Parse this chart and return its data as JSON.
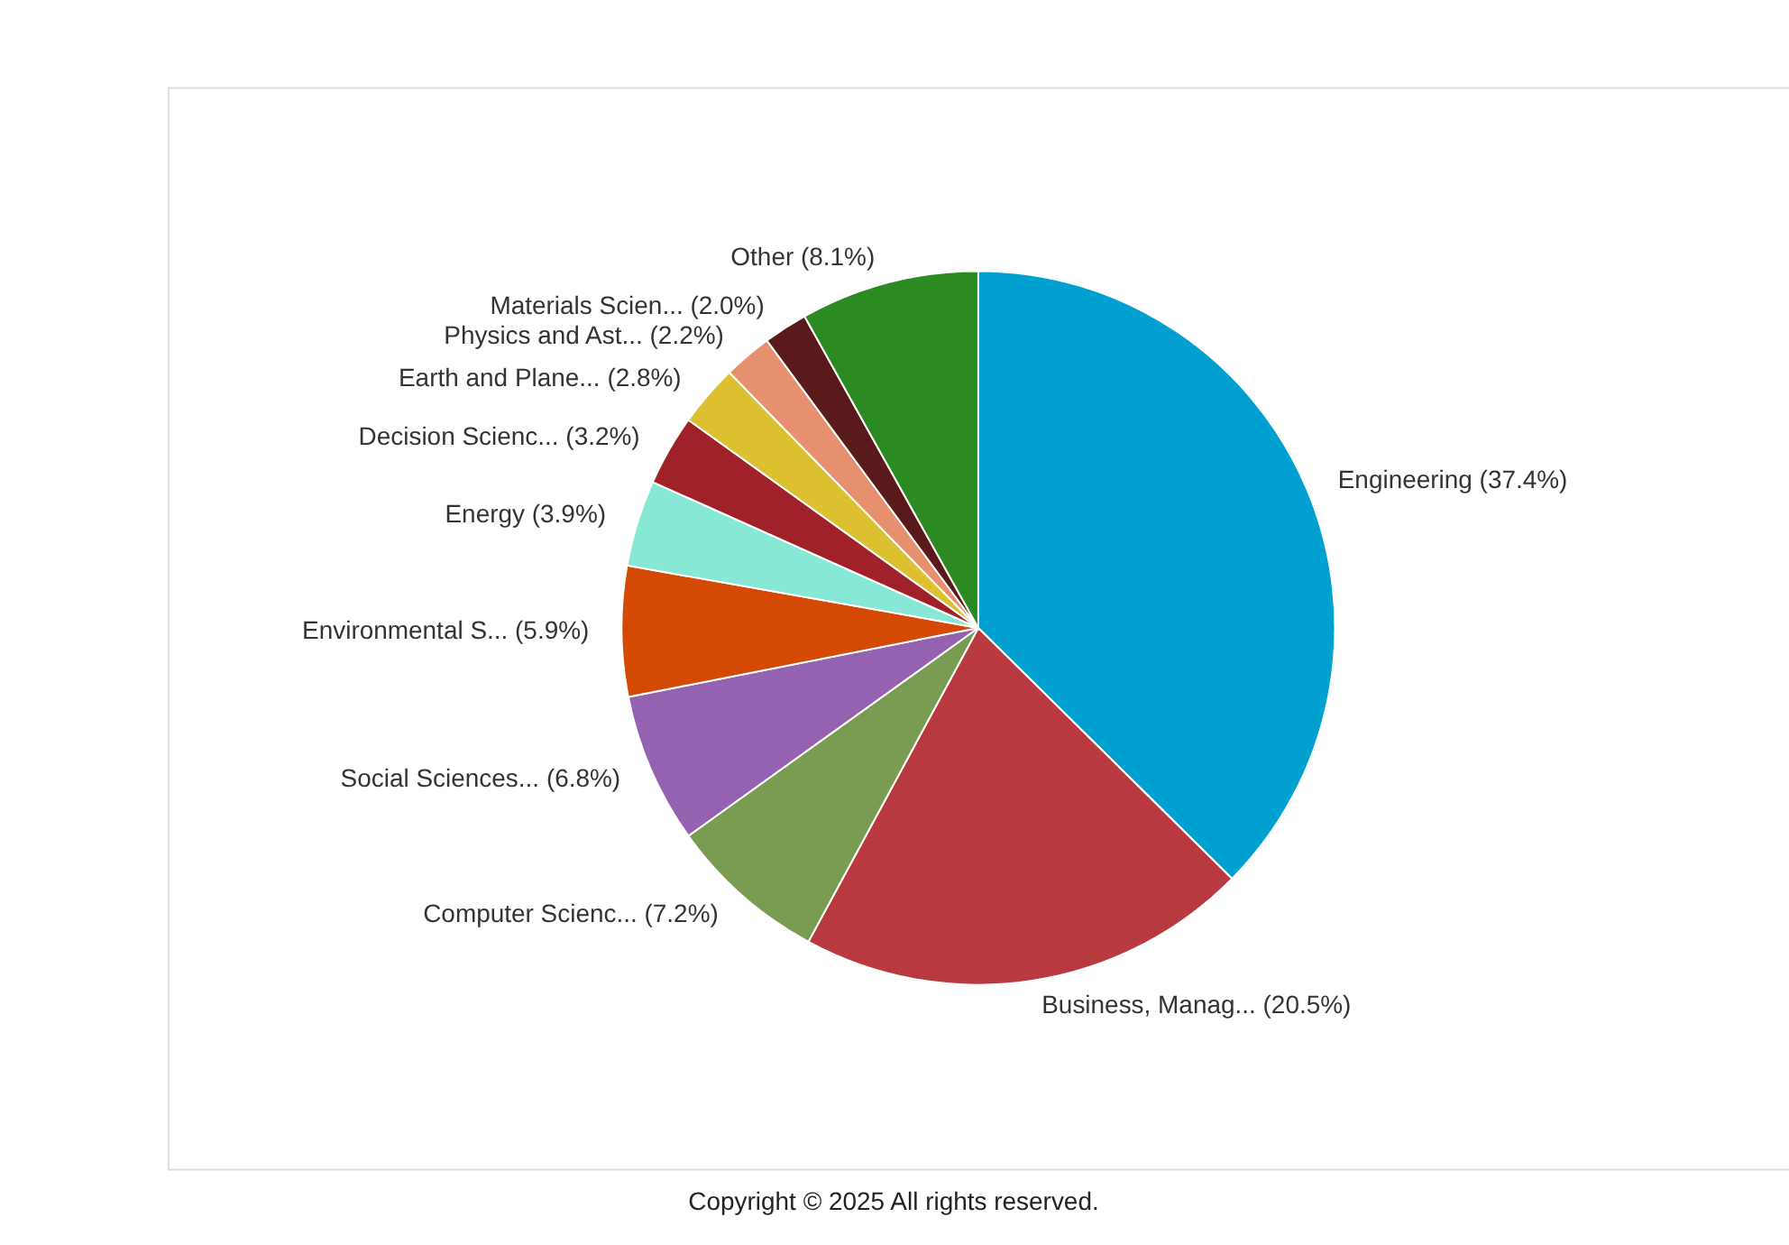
{
  "chart_data": {
    "type": "pie",
    "categories": [
      "Engineering (37.4%)",
      "Business, Manag... (20.5%)",
      "Computer Scienc... (7.2%)",
      "Social Sciences... (6.8%)",
      "Environmental S... (5.9%)",
      "Energy (3.9%)",
      "Decision Scienc... (3.2%)",
      "Earth and Plane... (2.8%)",
      "Physics and Ast... (2.2%)",
      "Materials Scien... (2.0%)",
      "Other (8.1%)"
    ],
    "values": [
      37.4,
      20.5,
      7.2,
      6.8,
      5.9,
      3.9,
      3.2,
      2.8,
      2.2,
      2.0,
      8.1
    ],
    "colors": [
      "#00a0d0",
      "#b83a40",
      "#7a9b52",
      "#9462b0",
      "#d44a04",
      "#86e8d5",
      "#a1212a",
      "#dcc030",
      "#e6906f",
      "#5a1a1c",
      "#2b8a21"
    ],
    "legend": false,
    "annotations": [
      "Copyright © 2025 All rights reserved."
    ]
  }
}
